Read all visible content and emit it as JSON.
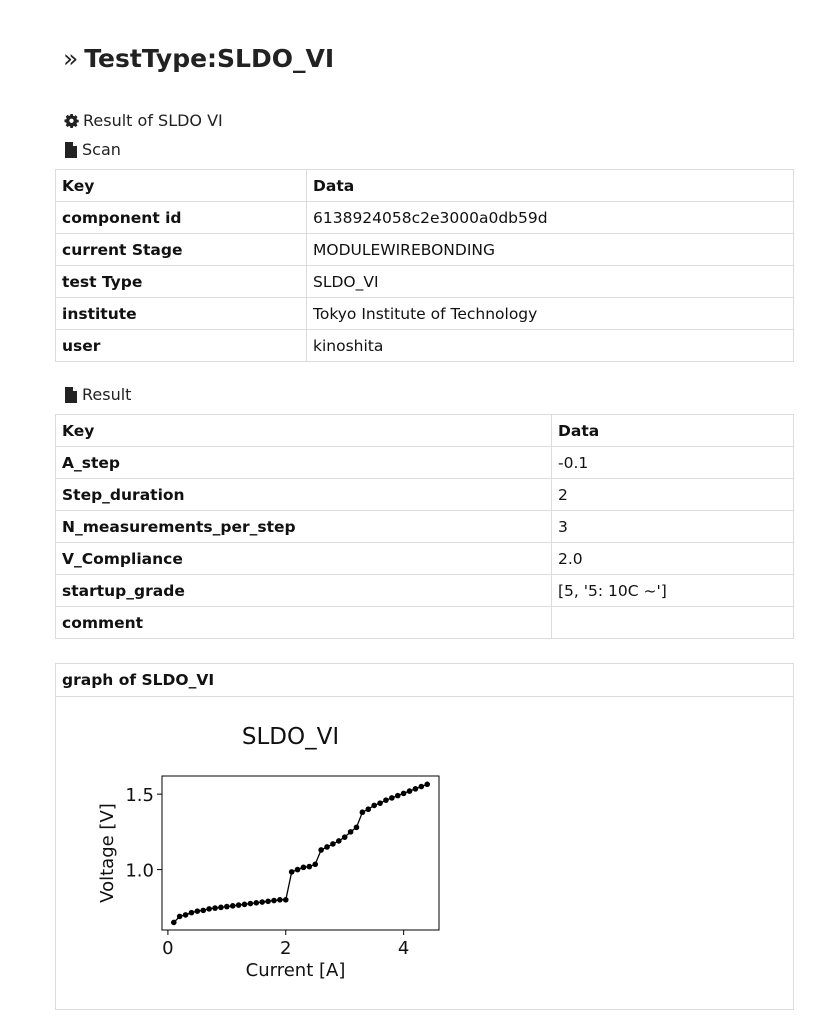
{
  "title": {
    "chevron": "»",
    "text": "TestType:SLDO_VI"
  },
  "result_link": {
    "icon": "gear-icon",
    "label": "Result of SLDO VI"
  },
  "scan": {
    "icon": "file-icon",
    "label": "Scan",
    "header": {
      "key": "Key",
      "data": "Data"
    },
    "rows": [
      {
        "key": "component id",
        "value": "6138924058c2e3000a0db59d"
      },
      {
        "key": "current Stage",
        "value": "MODULEWIREBONDING"
      },
      {
        "key": "test Type",
        "value": "SLDO_VI"
      },
      {
        "key": "institute",
        "value": "Tokyo Institute of Technology"
      },
      {
        "key": "user",
        "value": "kinoshita"
      }
    ]
  },
  "result": {
    "icon": "file-icon",
    "label": "Result",
    "header": {
      "key": "Key",
      "data": "Data"
    },
    "rows": [
      {
        "key": "A_step",
        "value": "-0.1"
      },
      {
        "key": "Step_duration",
        "value": "2"
      },
      {
        "key": "N_measurements_per_step",
        "value": "3"
      },
      {
        "key": "V_Compliance",
        "value": "2.0"
      },
      {
        "key": "startup_grade",
        "value": "[5, '5: 10C ~']"
      },
      {
        "key": "comment",
        "value": ""
      }
    ]
  },
  "graph": {
    "header": "graph of SLDO_VI",
    "chart_data": {
      "type": "line",
      "title": "SLDO_VI",
      "xlabel": "Current [A]",
      "ylabel": "Voltage [V]",
      "xlim": [
        -0.1,
        4.6
      ],
      "ylim": [
        0.6,
        1.62
      ],
      "xticks": [
        0,
        2,
        4
      ],
      "yticks": [
        1.0,
        1.5
      ],
      "marker_color": "#000000",
      "series": [
        {
          "x": [
            0.1,
            0.2,
            0.3,
            0.4,
            0.5,
            0.6,
            0.7,
            0.8,
            0.9,
            1.0,
            1.1,
            1.2,
            1.3,
            1.4,
            1.5,
            1.6,
            1.7,
            1.8,
            1.9,
            2.0,
            2.1,
            2.2,
            2.3,
            2.4,
            2.5,
            2.6,
            2.7,
            2.8,
            2.9,
            3.0,
            3.1,
            3.2,
            3.3,
            3.4,
            3.5,
            3.6,
            3.7,
            3.8,
            3.9,
            4.0,
            4.1,
            4.2,
            4.3,
            4.4
          ],
          "y": [
            0.65,
            0.69,
            0.7,
            0.715,
            0.725,
            0.73,
            0.74,
            0.745,
            0.75,
            0.755,
            0.76,
            0.765,
            0.77,
            0.775,
            0.78,
            0.785,
            0.79,
            0.795,
            0.8,
            0.8,
            0.985,
            1.0,
            1.015,
            1.02,
            1.035,
            1.13,
            1.15,
            1.17,
            1.19,
            1.215,
            1.25,
            1.28,
            1.38,
            1.4,
            1.425,
            1.44,
            1.46,
            1.475,
            1.49,
            1.505,
            1.52,
            1.535,
            1.55,
            1.565
          ]
        }
      ]
    }
  }
}
